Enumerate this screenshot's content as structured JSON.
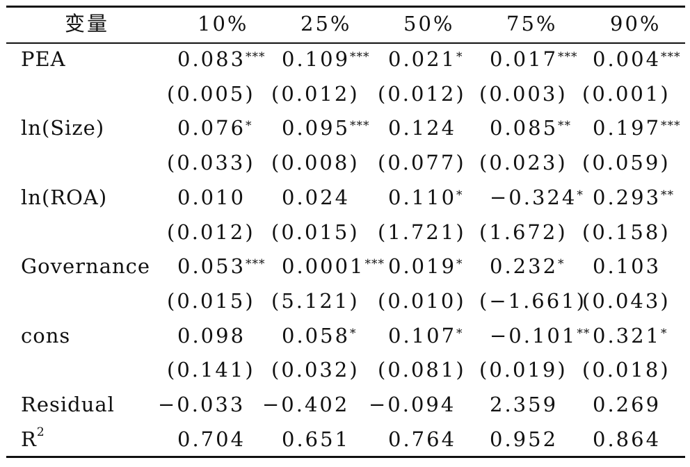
{
  "header": [
    "变量",
    "10%",
    "25%",
    "50%",
    "75%",
    "90%"
  ],
  "rows": [
    {
      "label": "PEA",
      "coef": [
        [
          "0.083",
          "***"
        ],
        [
          "0.109",
          "***"
        ],
        [
          "0.021",
          "*"
        ],
        [
          "0.017",
          "***"
        ],
        [
          "0.004",
          "***"
        ]
      ],
      "se": [
        "(0.005)",
        "(0.012)",
        "(0.012)",
        "(0.003)",
        "(0.001)"
      ]
    },
    {
      "label": "ln(Size)",
      "coef": [
        [
          "0.076",
          "*"
        ],
        [
          "0.095",
          "***"
        ],
        [
          "0.124",
          ""
        ],
        [
          "0.085",
          "**"
        ],
        [
          "0.197",
          "***"
        ]
      ],
      "se": [
        "(0.033)",
        "(0.008)",
        "(0.077)",
        "(0.023)",
        "(0.059)"
      ]
    },
    {
      "label": "ln(ROA)",
      "coef": [
        [
          "0.010",
          ""
        ],
        [
          "0.024",
          ""
        ],
        [
          "0.110",
          "*"
        ],
        [
          "−0.324",
          "*"
        ],
        [
          "0.293",
          "**"
        ]
      ],
      "se": [
        "(0.012)",
        "(0.015)",
        "(1.721)",
        "(1.672)",
        "(0.158)"
      ]
    },
    {
      "label": "Governance",
      "coef": [
        [
          "0.053",
          "***"
        ],
        [
          "0.0001",
          "***"
        ],
        [
          "0.019",
          "*"
        ],
        [
          "0.232",
          "*"
        ],
        [
          "0.103",
          ""
        ]
      ],
      "se": [
        "(0.015)",
        "(5.121)",
        "(0.010)",
        "(−1.661)",
        "(0.043)"
      ]
    },
    {
      "label": "cons",
      "coef": [
        [
          "0.098",
          ""
        ],
        [
          "0.058",
          "*"
        ],
        [
          "0.107",
          "*"
        ],
        [
          "−0.101",
          "**"
        ],
        [
          "0.321",
          "*"
        ]
      ],
      "se": [
        "(0.141)",
        "(0.032)",
        "(0.081)",
        "(0.019)",
        "(0.018)"
      ]
    }
  ],
  "residual": {
    "label": "Residual",
    "values": [
      "−0.033",
      "−0.402",
      "−0.094",
      "2.359",
      "0.269"
    ]
  },
  "r2": {
    "label": "R",
    "sup": "2",
    "values": [
      "0.704",
      "0.651",
      "0.764",
      "0.952",
      "0.864"
    ]
  }
}
